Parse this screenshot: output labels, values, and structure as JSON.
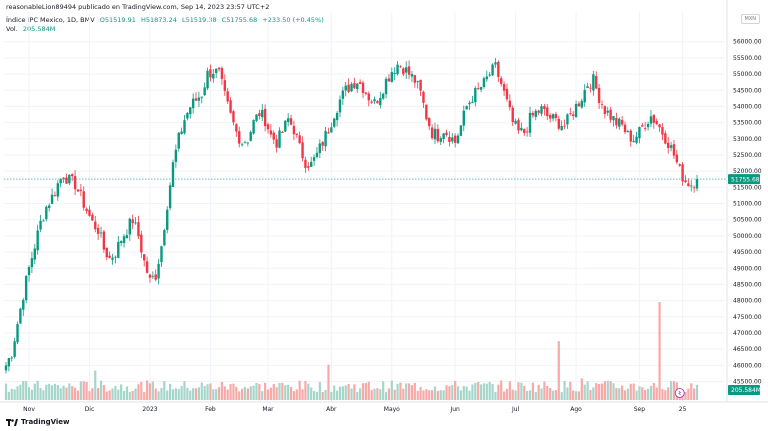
{
  "header": {
    "publisher": "reasonableLion89494 publicado en TradingView.com, Sep 14, 2023 23:57 UTC+2",
    "symbol": "Índice IPC Mexico, 1D, BMV",
    "open": "O51519.91",
    "high": "H51873.24",
    "low": "L51519.38",
    "close": "C51755.68",
    "change": "+233.50 (+0.45%)",
    "volume_label": "Vol.",
    "volume_value": "205.584M",
    "currency": "MXN"
  },
  "footer": {
    "brand": "TradingView"
  },
  "colors": {
    "up": "#089981",
    "down": "#f23645",
    "vol_up": "#a5d6c9",
    "vol_down": "#f7a9a7",
    "grid": "#f0f3fa",
    "axis_text": "#131722"
  },
  "chart_data": {
    "type": "candlestick",
    "price_axis_ticks": [
      45500,
      46000,
      46500,
      47000,
      47500,
      48000,
      48500,
      49000,
      49500,
      50000,
      50500,
      51000,
      51500,
      52000,
      52500,
      53000,
      53500,
      54000,
      54500,
      55000,
      55500,
      56000
    ],
    "price_axis_labels": [
      "45500.00",
      "46000.00",
      "46500.00",
      "47000.00",
      "47500.00",
      "48000.00",
      "48500.00",
      "49000.00",
      "49500.00",
      "50000.00",
      "50500.00",
      "51000.00",
      "51500.00",
      "52000.00",
      "52500.00",
      "53000.00",
      "53500.00",
      "54000.00",
      "54500.00",
      "55000.00",
      "55500.00",
      "56000.00"
    ],
    "ylim": [
      45300,
      56300
    ],
    "last_price": 51755.68,
    "last_price_label": "51755.68",
    "volume_label": "205.584M",
    "time_axis_labels": [
      {
        "label": "Nov",
        "index": 8
      },
      {
        "label": "Dic",
        "index": 29
      },
      {
        "label": "2023",
        "index": 50
      },
      {
        "label": "Feb",
        "index": 71
      },
      {
        "label": "Mar",
        "index": 91
      },
      {
        "label": "Abr",
        "index": 113
      },
      {
        "label": "Mayo",
        "index": 134
      },
      {
        "label": "Jun",
        "index": 156
      },
      {
        "label": "Jul",
        "index": 177
      },
      {
        "label": "Ago",
        "index": 198
      },
      {
        "label": "Sep",
        "index": 220
      },
      {
        "label": "25",
        "index": 235
      }
    ],
    "anchors": [
      [
        0,
        46000
      ],
      [
        2,
        46400
      ],
      [
        4,
        47300
      ],
      [
        6,
        48200
      ],
      [
        8,
        49000
      ],
      [
        10,
        49700
      ],
      [
        12,
        50400
      ],
      [
        14,
        50900
      ],
      [
        16,
        51200
      ],
      [
        18,
        51600
      ],
      [
        20,
        51900
      ],
      [
        22,
        51700
      ],
      [
        24,
        51600
      ],
      [
        26,
        51200
      ],
      [
        28,
        50800
      ],
      [
        30,
        50400
      ],
      [
        32,
        50200
      ],
      [
        34,
        49600
      ],
      [
        36,
        49300
      ],
      [
        38,
        49500
      ],
      [
        40,
        49900
      ],
      [
        42,
        50200
      ],
      [
        44,
        50500
      ],
      [
        46,
        50000
      ],
      [
        48,
        49200
      ],
      [
        50,
        48600
      ],
      [
        52,
        48800
      ],
      [
        54,
        49700
      ],
      [
        56,
        51000
      ],
      [
        58,
        52200
      ],
      [
        60,
        53000
      ],
      [
        62,
        53600
      ],
      [
        64,
        54000
      ],
      [
        66,
        54200
      ],
      [
        68,
        54400
      ],
      [
        70,
        55000
      ],
      [
        72,
        55100
      ],
      [
        74,
        55000
      ],
      [
        76,
        54300
      ],
      [
        78,
        53700
      ],
      [
        80,
        53200
      ],
      [
        82,
        52900
      ],
      [
        84,
        53000
      ],
      [
        86,
        53500
      ],
      [
        88,
        53800
      ],
      [
        90,
        53600
      ],
      [
        92,
        53100
      ],
      [
        94,
        52900
      ],
      [
        96,
        53200
      ],
      [
        98,
        53600
      ],
      [
        100,
        53300
      ],
      [
        102,
        52700
      ],
      [
        104,
        52300
      ],
      [
        106,
        52200
      ],
      [
        108,
        52500
      ],
      [
        110,
        52900
      ],
      [
        112,
        53300
      ],
      [
        114,
        53800
      ],
      [
        116,
        54200
      ],
      [
        118,
        54500
      ],
      [
        120,
        54700
      ],
      [
        122,
        54800
      ],
      [
        124,
        54600
      ],
      [
        126,
        54300
      ],
      [
        128,
        54100
      ],
      [
        130,
        54400
      ],
      [
        132,
        54800
      ],
      [
        134,
        55100
      ],
      [
        136,
        55300
      ],
      [
        138,
        55200
      ],
      [
        140,
        55000
      ],
      [
        142,
        54800
      ],
      [
        144,
        54400
      ],
      [
        146,
        53700
      ],
      [
        148,
        53200
      ],
      [
        150,
        53100
      ],
      [
        152,
        53300
      ],
      [
        154,
        53100
      ],
      [
        156,
        52900
      ],
      [
        158,
        53400
      ],
      [
        160,
        54000
      ],
      [
        162,
        54300
      ],
      [
        164,
        54500
      ],
      [
        166,
        54700
      ],
      [
        168,
        55000
      ],
      [
        170,
        55200
      ],
      [
        172,
        54700
      ],
      [
        174,
        54100
      ],
      [
        176,
        53500
      ],
      [
        178,
        53200
      ],
      [
        180,
        53200
      ],
      [
        182,
        53600
      ],
      [
        184,
        53800
      ],
      [
        186,
        53900
      ],
      [
        188,
        53700
      ],
      [
        190,
        53600
      ],
      [
        192,
        53500
      ],
      [
        194,
        53400
      ],
      [
        196,
        53700
      ],
      [
        198,
        54000
      ],
      [
        200,
        54300
      ],
      [
        202,
        54700
      ],
      [
        204,
        54800
      ],
      [
        206,
        54300
      ],
      [
        208,
        53900
      ],
      [
        210,
        53700
      ],
      [
        212,
        53500
      ],
      [
        214,
        53400
      ],
      [
        216,
        53100
      ],
      [
        218,
        53000
      ],
      [
        220,
        53200
      ],
      [
        222,
        53500
      ],
      [
        224,
        53700
      ],
      [
        226,
        53500
      ],
      [
        228,
        53200
      ],
      [
        230,
        52900
      ],
      [
        232,
        52500
      ],
      [
        234,
        52000
      ],
      [
        236,
        51700
      ],
      [
        238,
        51600
      ],
      [
        240,
        51760
      ]
    ],
    "volume_spikes": [
      {
        "index": 31,
        "vol": 0.3,
        "up": true
      },
      {
        "index": 112,
        "vol": 0.36,
        "up": false
      },
      {
        "index": 192,
        "vol": 0.6,
        "up": false
      },
      {
        "index": 200,
        "vol": 0.22,
        "up": false
      },
      {
        "index": 227,
        "vol": 1.0,
        "up": false
      }
    ]
  }
}
